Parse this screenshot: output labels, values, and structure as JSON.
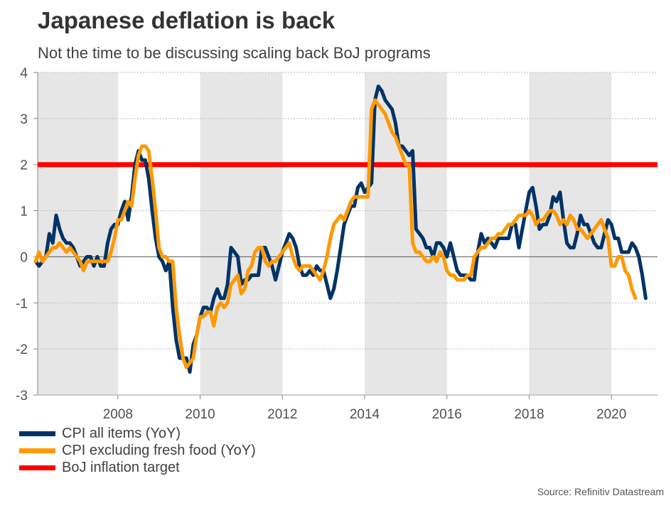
{
  "title": "Japanese deflation is back",
  "subtitle": "Not the time to be discussing scaling back BoJ programs",
  "source": "Source: Refinitiv Datastream",
  "colors": {
    "cpi_all": "#003366",
    "cpi_core": "#FF9900",
    "target": "#FF0000",
    "band": "#E6E6E6",
    "zero_line": "#555555",
    "grid": "#BBBBBB"
  },
  "legend": [
    {
      "label": "CPI all items (YoY)",
      "color": "#003366"
    },
    {
      "label": "CPI excluding fresh food (YoY)",
      "color": "#FF9900"
    },
    {
      "label": "BoJ inflation target",
      "color": "#FF0000"
    }
  ],
  "chart_data": {
    "type": "line",
    "title": "Japanese deflation is back",
    "subtitle": "Not the time to be discussing scaling back BoJ programs",
    "xlabel": "",
    "ylabel": "",
    "xlim": [
      2006.05,
      2021.12
    ],
    "ylim": [
      -3,
      4
    ],
    "yticks": [
      4,
      3,
      2,
      1,
      0,
      -1,
      -2,
      -3
    ],
    "xticks": [
      2008,
      2010,
      2012,
      2014,
      2016,
      2018,
      2020
    ],
    "grid": true,
    "legend_position": "bottom-left",
    "shaded_periods": [
      [
        2006.05,
        2008
      ],
      [
        2010,
        2012
      ],
      [
        2014,
        2016
      ],
      [
        2018,
        2020
      ]
    ],
    "x_start": 2006.0,
    "x_step_months": 1,
    "series": [
      {
        "name": "CPI all items (YoY)",
        "values": [
          -0.1,
          -0.2,
          -0.1,
          0.0,
          0.5,
          0.3,
          0.9,
          0.6,
          0.4,
          0.3,
          0.3,
          0.2,
          0.0,
          -0.2,
          -0.1,
          0.0,
          0.0,
          -0.2,
          0.0,
          -0.2,
          -0.2,
          0.3,
          0.6,
          0.7,
          0.7,
          1.0,
          1.2,
          0.8,
          1.3,
          2.0,
          2.3,
          2.1,
          2.1,
          1.7,
          1.0,
          0.4,
          0.0,
          -0.1,
          -0.3,
          -0.1,
          -1.1,
          -1.8,
          -2.2,
          -2.2,
          -2.2,
          -2.5,
          -1.9,
          -1.7,
          -1.3,
          -1.1,
          -1.1,
          -1.2,
          -0.9,
          -0.7,
          -0.9,
          -0.9,
          -0.6,
          0.2,
          0.1,
          0.0,
          -0.6,
          -0.5,
          -0.5,
          -0.4,
          -0.4,
          -0.4,
          0.2,
          0.2,
          0.0,
          -0.2,
          -0.5,
          -0.2,
          0.1,
          0.3,
          0.5,
          0.4,
          0.2,
          -0.2,
          -0.4,
          -0.4,
          -0.3,
          -0.4,
          -0.2,
          -0.3,
          -0.3,
          -0.6,
          -0.9,
          -0.7,
          -0.3,
          0.2,
          0.7,
          0.9,
          1.1,
          1.1,
          1.5,
          1.6,
          1.4,
          1.5,
          1.6,
          3.4,
          3.7,
          3.6,
          3.4,
          3.3,
          3.2,
          2.9,
          2.4,
          2.4,
          2.3,
          2.2,
          2.3,
          0.6,
          0.5,
          0.4,
          0.2,
          0.2,
          0.0,
          0.3,
          0.3,
          0.2,
          0.0,
          0.3,
          0.0,
          -0.3,
          -0.4,
          -0.4,
          -0.4,
          -0.5,
          -0.5,
          0.1,
          0.5,
          0.3,
          0.4,
          0.3,
          0.2,
          0.4,
          0.4,
          0.4,
          0.4,
          0.7,
          0.7,
          0.2,
          0.6,
          1.0,
          1.4,
          1.5,
          1.1,
          0.6,
          0.7,
          0.7,
          0.9,
          1.3,
          1.2,
          1.4,
          0.8,
          0.3,
          0.2,
          0.2,
          0.5,
          0.9,
          0.7,
          0.7,
          0.5,
          0.3,
          0.2,
          0.2,
          0.5,
          0.8,
          0.7,
          0.4,
          0.4,
          0.1,
          0.1,
          0.1,
          0.3,
          0.2,
          0.0,
          -0.4,
          -0.9
        ]
      },
      {
        "name": "CPI excluding fresh food (YoY)",
        "values": [
          -0.1,
          0.1,
          -0.1,
          0.0,
          0.1,
          0.2,
          0.2,
          0.3,
          0.2,
          0.1,
          0.2,
          0.1,
          0.0,
          -0.1,
          -0.3,
          -0.1,
          -0.1,
          -0.1,
          -0.1,
          -0.1,
          -0.1,
          -0.1,
          0.1,
          0.4,
          0.8,
          0.8,
          1.0,
          1.2,
          1.1,
          1.7,
          2.2,
          2.4,
          2.4,
          2.3,
          1.7,
          1.0,
          0.2,
          0.0,
          0.0,
          -0.1,
          -0.1,
          -1.1,
          -1.7,
          -2.2,
          -2.4,
          -2.3,
          -2.2,
          -1.7,
          -1.3,
          -1.3,
          -1.2,
          -1.2,
          -1.5,
          -1.1,
          -1.0,
          -1.1,
          -1.0,
          -0.6,
          -0.5,
          -0.4,
          -0.8,
          -0.7,
          -0.3,
          -0.2,
          0.1,
          0.2,
          0.2,
          -0.1,
          -0.2,
          -0.1,
          -0.1,
          0.0,
          0.1,
          0.2,
          0.3,
          0.0,
          -0.2,
          -0.3,
          -0.2,
          -0.2,
          -0.2,
          -0.3,
          -0.4,
          -0.5,
          -0.3,
          0.0,
          0.4,
          0.7,
          0.8,
          0.9,
          0.8,
          1.0,
          1.2,
          1.3,
          1.3,
          1.3,
          1.3,
          1.3,
          3.2,
          3.4,
          3.3,
          3.2,
          3.1,
          2.9,
          2.7,
          2.6,
          2.4,
          2.2,
          2.0,
          2.0,
          0.3,
          0.1,
          0.1,
          0.0,
          -0.1,
          -0.1,
          0.0,
          -0.1,
          0.1,
          0.0,
          -0.3,
          -0.4,
          -0.4,
          -0.5,
          -0.5,
          -0.5,
          -0.4,
          -0.4,
          0.0,
          0.1,
          0.2,
          0.2,
          0.3,
          0.4,
          0.4,
          0.5,
          0.5,
          0.6,
          0.7,
          0.7,
          0.8,
          0.9,
          0.9,
          0.9,
          1.0,
          0.9,
          0.7,
          0.8,
          0.8,
          0.9,
          1.0,
          1.0,
          0.9,
          0.7,
          0.8,
          0.7,
          0.9,
          0.8,
          0.6,
          0.6,
          0.5,
          0.4,
          0.5,
          0.6,
          0.7,
          0.8,
          0.6,
          0.4,
          -0.2,
          -0.2,
          0.0,
          0.0,
          -0.3,
          -0.4,
          -0.7,
          -0.9
        ]
      },
      {
        "name": "BoJ inflation target",
        "values": [
          2,
          2
        ],
        "x": [
          2006.05,
          2021.12
        ]
      }
    ]
  }
}
